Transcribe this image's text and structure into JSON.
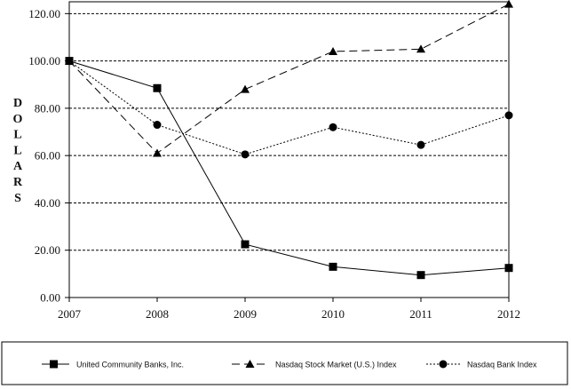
{
  "chart_data": {
    "type": "line",
    "title": "",
    "xlabel": "",
    "ylabel": "DOLLARS",
    "x": [
      "2007",
      "2008",
      "2009",
      "2010",
      "2011",
      "2012"
    ],
    "ylim": [
      0,
      125
    ],
    "yticks": [
      "0.00",
      "20.00",
      "40.00",
      "60.00",
      "80.00",
      "100.00",
      "120.00"
    ],
    "grid": true,
    "legend_position": "bottom",
    "series": [
      {
        "name": "United Community Banks, Inc.",
        "values": [
          100,
          88.5,
          22.5,
          13,
          9.5,
          12.5
        ],
        "marker": "square",
        "dash": "solid",
        "color": "#000000"
      },
      {
        "name": "Nasdaq Stock Market (U.S.) Index",
        "values": [
          100,
          61,
          88,
          104,
          105,
          124
        ],
        "marker": "triangle",
        "dash": "long-dash",
        "color": "#000000"
      },
      {
        "name": "Nasdaq Bank Index",
        "values": [
          100,
          73,
          60.5,
          72,
          64.5,
          77
        ],
        "marker": "circle",
        "dash": "dotted",
        "color": "#000000"
      }
    ]
  }
}
